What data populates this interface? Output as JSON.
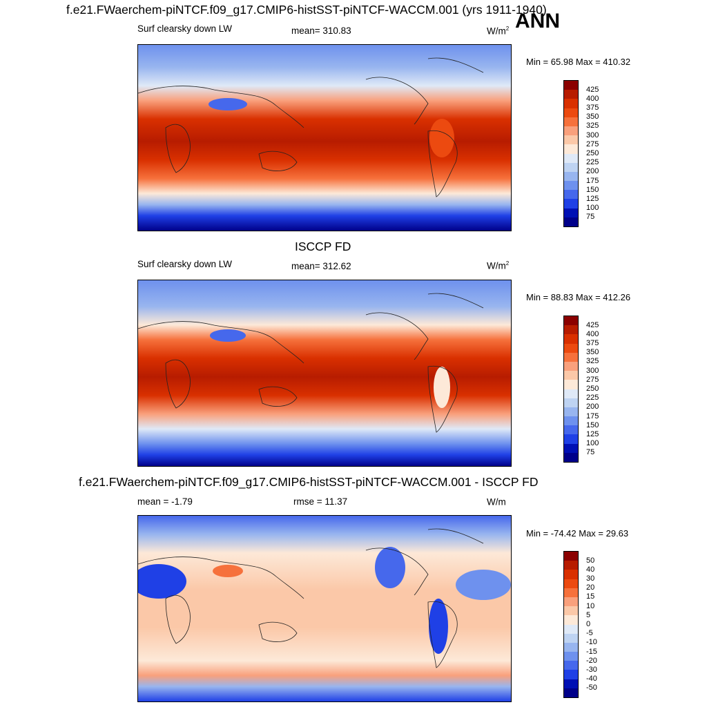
{
  "main_title": "f.e21.FWaerchem-piNTCF.f09_g17.CMIP6-histSST-piNTCF-WACCM.001 (yrs 1911-1940)",
  "season": "ANN",
  "panels": [
    {
      "title": "",
      "left_label": "Surf clearsky down LW",
      "center_label": "mean= 310.83",
      "units": "W/m",
      "units_sup": "2",
      "minmax": "Min =  65.98 Max = 410.32",
      "levels": [
        "425",
        "400",
        "375",
        "350",
        "325",
        "300",
        "275",
        "250",
        "225",
        "200",
        "175",
        "150",
        "125",
        "100",
        "75"
      ],
      "colors": [
        "#8b0000",
        "#b71c00",
        "#d93000",
        "#ec4a10",
        "#f6713c",
        "#f9a07c",
        "#fbc8a8",
        "#fde9d8",
        "#dfe9f7",
        "#bed3f2",
        "#98b5ef",
        "#6e91ee",
        "#4668ec",
        "#1f40e6",
        "#0010b4",
        "#00008a"
      ]
    },
    {
      "title": "ISCCP FD",
      "left_label": "Surf clearsky down LW",
      "center_label": "mean= 312.62",
      "units": "W/m",
      "units_sup": "2",
      "minmax": "Min =  88.83 Max = 412.26",
      "levels": [
        "425",
        "400",
        "375",
        "350",
        "325",
        "300",
        "275",
        "250",
        "225",
        "200",
        "175",
        "150",
        "125",
        "100",
        "75"
      ],
      "colors": [
        "#8b0000",
        "#b71c00",
        "#d93000",
        "#ec4a10",
        "#f6713c",
        "#f9a07c",
        "#fbc8a8",
        "#fde9d8",
        "#dfe9f7",
        "#bed3f2",
        "#98b5ef",
        "#6e91ee",
        "#4668ec",
        "#1f40e6",
        "#0010b4",
        "#00008a"
      ]
    },
    {
      "title": "f.e21.FWaerchem-piNTCF.f09_g17.CMIP6-histSST-piNTCF-WACCM.001 - ISCCP FD",
      "left_label": "mean =  -1.79",
      "center_label": "rmse =  11.37",
      "units": "W/m",
      "units_sup": "",
      "minmax": "Min = -74.42 Max =  29.63",
      "levels": [
        "50",
        "40",
        "30",
        "20",
        "15",
        "10",
        "5",
        "0",
        "-5",
        "-10",
        "-15",
        "-20",
        "-30",
        "-40",
        "-50"
      ],
      "colors": [
        "#8b0000",
        "#b71c00",
        "#d93000",
        "#ec4a10",
        "#f6713c",
        "#f9a07c",
        "#fbc8a8",
        "#fde9d8",
        "#dfe9f7",
        "#bed3f2",
        "#98b5ef",
        "#6e91ee",
        "#4668ec",
        "#1f40e6",
        "#0010b4",
        "#00008a"
      ]
    }
  ],
  "chart_data": [
    {
      "type": "heatmap",
      "title": "Surf clearsky down LW",
      "subtitle": "mean= 310.83",
      "units": "W/m2",
      "color_levels": [
        75,
        100,
        125,
        150,
        175,
        200,
        225,
        250,
        275,
        300,
        325,
        350,
        375,
        400,
        425
      ],
      "min": 65.98,
      "max": 410.32,
      "mean": 310.83
    },
    {
      "type": "heatmap",
      "title": "ISCCP FD",
      "subtitle": "Surf clearsky down LW",
      "units": "W/m2",
      "color_levels": [
        75,
        100,
        125,
        150,
        175,
        200,
        225,
        250,
        275,
        300,
        325,
        350,
        375,
        400,
        425
      ],
      "min": 88.83,
      "max": 412.26,
      "mean": 312.62
    },
    {
      "type": "heatmap",
      "title": "f.e21.FWaerchem-piNTCF.f09_g17.CMIP6-histSST-piNTCF-WACCM.001 - ISCCP FD",
      "units": "W/m",
      "color_levels": [
        -50,
        -40,
        -30,
        -20,
        -15,
        -10,
        -5,
        0,
        5,
        10,
        15,
        20,
        30,
        40,
        50
      ],
      "min": -74.42,
      "max": 29.63,
      "mean": -1.79,
      "rmse": 11.37
    }
  ]
}
